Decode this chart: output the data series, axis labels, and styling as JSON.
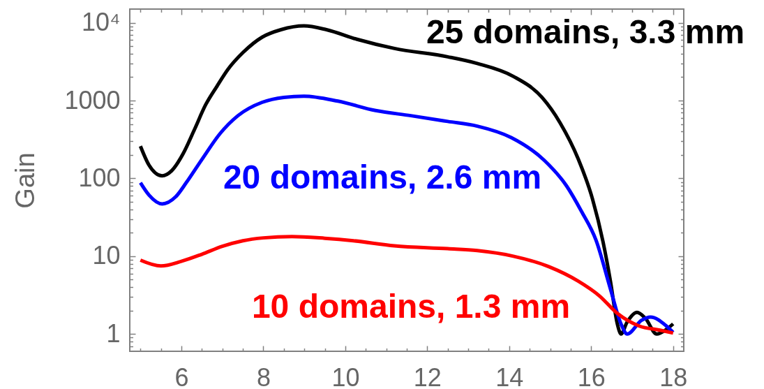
{
  "chart_data": {
    "type": "line",
    "ylabel": "Gain",
    "log": true,
    "line_style": "solid",
    "xlim": [
      4.74,
      18.26
    ],
    "ylim": [
      0.6,
      15000
    ],
    "xticks": [
      {
        "value": 5,
        "label": null
      },
      {
        "value": 5.5,
        "label": null
      },
      6,
      {
        "value": 6.5,
        "label": null
      },
      {
        "value": 7,
        "label": null
      },
      {
        "value": 7.5,
        "label": null
      },
      8,
      {
        "value": 8.5,
        "label": null
      },
      {
        "value": 9,
        "label": null
      },
      {
        "value": 9.5,
        "label": null
      },
      10,
      {
        "value": 10.5,
        "label": null
      },
      {
        "value": 11,
        "label": null
      },
      {
        "value": 11.5,
        "label": null
      },
      12,
      {
        "value": 12.5,
        "label": null
      },
      {
        "value": 13,
        "label": null
      },
      {
        "value": 13.5,
        "label": null
      },
      14,
      {
        "value": 14.5,
        "label": null
      },
      {
        "value": 15,
        "label": null
      },
      {
        "value": 15.5,
        "label": null
      },
      16,
      {
        "value": 16.5,
        "label": null
      },
      {
        "value": 17,
        "label": null
      },
      {
        "value": 17.5,
        "label": null
      },
      18
    ],
    "yticks": [
      {
        "value": 0.7,
        "label": null
      },
      {
        "value": 0.8,
        "label": null
      },
      {
        "value": 0.9,
        "label": null
      },
      1,
      {
        "value": 2,
        "label": null
      },
      {
        "value": 3,
        "label": null
      },
      {
        "value": 4,
        "label": null
      },
      {
        "value": 5,
        "label": null
      },
      {
        "value": 6,
        "label": null
      },
      {
        "value": 7,
        "label": null
      },
      {
        "value": 8,
        "label": null
      },
      {
        "value": 9,
        "label": null
      },
      10,
      {
        "value": 20,
        "label": null
      },
      {
        "value": 30,
        "label": null
      },
      {
        "value": 40,
        "label": null
      },
      {
        "value": 50,
        "label": null
      },
      {
        "value": 60,
        "label": null
      },
      {
        "value": 70,
        "label": null
      },
      {
        "value": 80,
        "label": null
      },
      {
        "value": 90,
        "label": null
      },
      100,
      {
        "value": 200,
        "label": null
      },
      {
        "value": 300,
        "label": null
      },
      {
        "value": 400,
        "label": null
      },
      {
        "value": 500,
        "label": null
      },
      {
        "value": 600,
        "label": null
      },
      {
        "value": 700,
        "label": null
      },
      {
        "value": 800,
        "label": null
      },
      {
        "value": 900,
        "label": null
      },
      1000,
      {
        "value": 2000,
        "label": null
      },
      {
        "value": 3000,
        "label": null
      },
      {
        "value": 4000,
        "label": null
      },
      {
        "value": 5000,
        "label": null
      },
      {
        "value": 6000,
        "label": null
      },
      {
        "value": 7000,
        "label": null
      },
      {
        "value": 8000,
        "label": null
      },
      {
        "value": 9000,
        "label": null
      },
      {
        "value": 10000,
        "label": "10⁴"
      }
    ],
    "series": [
      {
        "name": "25 domains, 3.3 mm",
        "color": "#000000",
        "x": [
          5,
          5.21,
          5.53,
          5.76,
          6.04,
          6.32,
          6.59,
          6.87,
          7.14,
          7.51,
          7.97,
          8.43,
          8.99,
          9.54,
          10.27,
          11.2,
          12.5,
          13.22,
          14.1,
          14.8,
          15.24,
          15.68,
          16.03,
          16.29,
          16.47,
          16.64,
          16.73,
          16.87,
          17.12,
          17.32,
          17.6,
          17.83,
          18
        ],
        "values": [
          260,
          148,
          108,
          125,
          207,
          427,
          880,
          1535,
          2535,
          4180,
          6530,
          8150,
          9120,
          8150,
          6170,
          4680,
          3650,
          3000,
          2050,
          1100,
          520,
          180,
          55,
          15.3,
          4.8,
          1.34,
          1.0,
          1.4,
          1.9,
          1.6,
          1.0,
          1.14,
          1.35
        ]
      },
      {
        "name": "20 domains, 2.6 mm",
        "color": "#0000ff",
        "x": [
          5,
          5.21,
          5.53,
          5.86,
          6.13,
          6.5,
          6.94,
          7.38,
          7.97,
          8.5,
          8.99,
          9.82,
          10.74,
          11.6,
          12.5,
          13.22,
          14.05,
          14.85,
          15.4,
          15.76,
          16.12,
          16.47,
          16.73,
          16.88,
          17.23,
          17.45,
          17.82,
          18
        ],
        "values": [
          88,
          61,
          47,
          58,
          90,
          175,
          375,
          640,
          950,
          1100,
          1140,
          984,
          745,
          640,
          540,
          470,
          335,
          172,
          80,
          38,
          16,
          3.8,
          1.34,
          1.0,
          1.5,
          1.65,
          1.29,
          1.05
        ]
      },
      {
        "name": "10 domains, 1.3 mm",
        "color": "#ff0000",
        "x": [
          5,
          5.5,
          6,
          6.5,
          7,
          7.5,
          8,
          8.7,
          9.5,
          10.2,
          11.2,
          12.5,
          13.22,
          14.1,
          14.98,
          15.68,
          16.2,
          16.64,
          17.17,
          17.68,
          18
        ],
        "values": [
          8.9,
          7.5,
          8.6,
          10.6,
          13.4,
          15.8,
          17.2,
          17.9,
          17,
          15.8,
          13.6,
          12.5,
          11.8,
          10.0,
          7.3,
          4.8,
          3.1,
          1.84,
          1.27,
          1.12,
          1.03
        ]
      }
    ]
  }
}
